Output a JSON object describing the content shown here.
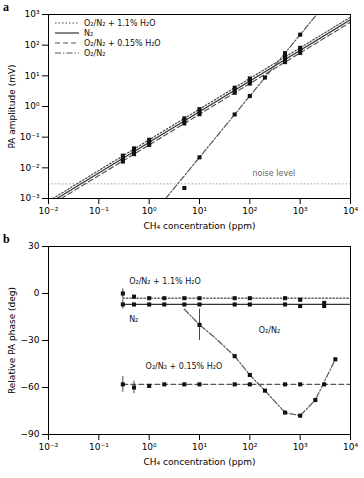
{
  "chart_data": [
    {
      "type": "line",
      "title": "a",
      "xlabel": "CH₄ concentration (ppm)",
      "ylabel": "PA amplitude (mV)",
      "log": true,
      "grid": false,
      "legend": "upper left",
      "xlim": [
        0.01,
        10000
      ],
      "ylim": [
        0.001,
        1000
      ],
      "xticks": [
        {
          "value": 0.01,
          "label": "10⁻²"
        },
        {
          "value": 0.1,
          "label": "10⁻¹"
        },
        {
          "value": 1,
          "label": "10⁰"
        },
        {
          "value": 10,
          "label": "10¹"
        },
        {
          "value": 100,
          "label": "10²"
        },
        {
          "value": 1000,
          "label": "10³"
        },
        {
          "value": 10000,
          "label": "10⁴"
        }
      ],
      "yticks": [
        {
          "value": 0.001,
          "label": "10⁻³"
        },
        {
          "value": 0.01,
          "label": "10⁻²"
        },
        {
          "value": 0.1,
          "label": "10⁻¹"
        },
        {
          "value": 1,
          "label": "10⁰"
        },
        {
          "value": 10,
          "label": "10¹"
        },
        {
          "value": 100,
          "label": "10²"
        },
        {
          "value": 1000,
          "label": "10³"
        }
      ],
      "noise_level": 0.003,
      "annotations": [
        {
          "text": "noise level",
          "x": 300,
          "y": 0.0054
        }
      ],
      "series": [
        {
          "name": "O₂/N₂ + 1.1% H₂O",
          "type": "line",
          "color": "#444444",
          "line_style": "dotted",
          "x": [
            0.01219512195,
            10000
          ],
          "values": [
            0.001,
            820
          ]
        },
        {
          "name": "N₂",
          "type": "line",
          "color": "#333333",
          "line_style": "solid",
          "x": [
            0.01470588235,
            10000
          ],
          "values": [
            0.001,
            680
          ]
        },
        {
          "name": "O₂/N₂ + 0.15% H₂O",
          "type": "line",
          "color": "#555555",
          "line_style": "dashed",
          "x": [
            0.01785714286,
            10000
          ],
          "values": [
            0.001,
            560
          ]
        },
        {
          "name": "O₂/N₂",
          "type": "line",
          "color": "#555555",
          "line_style": "dashdot",
          "x": [
            2.132007164,
            2132.007164
          ],
          "values": [
            0.001,
            1000
          ]
        },
        {
          "type": "scatter",
          "color": "#111111",
          "marker": "square",
          "x": [
            0.3,
            0.5,
            1.0,
            5.0,
            10.0,
            50.0,
            100.0,
            500.0,
            1000.0
          ],
          "values": [
            0.025,
            0.043,
            0.082,
            0.41,
            0.82,
            4.1,
            8.2,
            41.0,
            82.0
          ]
        },
        {
          "type": "scatter",
          "color": "#111111",
          "marker": "square",
          "x": [
            0.3,
            0.5,
            1.0,
            5.0,
            10.0,
            50.0,
            100.0,
            500.0,
            1000.0
          ],
          "values": [
            0.02,
            0.035,
            0.068,
            0.34,
            0.68,
            3.4,
            6.8,
            34.0,
            68.0
          ]
        },
        {
          "type": "scatter",
          "color": "#111111",
          "marker": "square",
          "x": [
            0.3,
            0.5,
            1.0,
            5.0,
            10.0,
            50.0,
            100.0,
            500.0,
            1000.0
          ],
          "values": [
            0.016,
            0.028,
            0.056,
            0.28,
            0.56,
            2.8,
            5.6,
            28.0,
            56.0
          ]
        },
        {
          "type": "scatter",
          "color": "#111111",
          "marker": "square",
          "x": [
            5.0,
            10.0,
            50.0,
            100.0,
            200.0,
            500.0,
            1000.0
          ],
          "values": [
            0.0022,
            0.022,
            0.55,
            2.2,
            8.8,
            55.0,
            220.0
          ]
        }
      ]
    },
    {
      "type": "line",
      "title": "b",
      "xlabel": "CH₄ concentration (ppm)",
      "ylabel": "Relative PA phase (deg)",
      "log": "x",
      "grid": false,
      "xlim": [
        0.01,
        10000
      ],
      "ylim": [
        -90,
        30
      ],
      "xticks": [
        {
          "value": 0.01,
          "label": "10⁻²"
        },
        {
          "value": 0.1,
          "label": "10⁻¹"
        },
        {
          "value": 1,
          "label": "10⁰"
        },
        {
          "value": 10,
          "label": "10¹"
        },
        {
          "value": 100,
          "label": "10²"
        },
        {
          "value": 1000,
          "label": "10³"
        },
        {
          "value": 10000,
          "label": "10⁴"
        }
      ],
      "yticks": [
        30,
        0,
        -30,
        -60,
        -90
      ],
      "annotations": [
        {
          "text": "O₂/N₂ + 1.1% H₂O",
          "x": 0.4,
          "y": 6
        },
        {
          "text": "N₂",
          "x": 0.4,
          "y": -18
        },
        {
          "text": "O₂/N₂ + 0.15% H₂O",
          "x": 0.85,
          "y": -48
        },
        {
          "text": "O₂/N₂",
          "x": 150.0,
          "y": -25
        }
      ],
      "series": [
        {
          "type": "line",
          "color": "#444444",
          "line_style": "dotted",
          "x": [
            0.3,
            10000
          ],
          "values": [
            -3.0,
            -3.0
          ]
        },
        {
          "type": "line",
          "color": "#333333",
          "line_style": "solid",
          "x": [
            0.3,
            10000
          ],
          "values": [
            -7.0,
            -7.0
          ]
        },
        {
          "type": "line",
          "color": "#555555",
          "line_style": "dashed",
          "x": [
            0.3,
            10000
          ],
          "values": [
            -58.0,
            -58.0
          ]
        },
        {
          "type": "line",
          "color": "#555555",
          "line_style": "dashdot",
          "x": [
            5.0,
            10.0,
            20.0,
            50.0,
            100.0,
            200.0,
            500.0,
            1000.0,
            2000.0,
            5000.0
          ],
          "values": [
            -10.0,
            -20.0,
            -28.0,
            -40.0,
            -52.0,
            -62.0,
            -76.0,
            -78.0,
            -68.0,
            -42.0
          ]
        },
        {
          "type": "scatter",
          "color": "#111111",
          "marker": "square",
          "x": [
            0.3,
            0.5,
            1.0,
            2.0,
            5.0,
            10.0,
            50.0,
            100.0,
            500.0,
            1000.0,
            3000.0
          ],
          "values": [
            0.0,
            -2.0,
            -3.0,
            -3.0,
            -3.0,
            -3.0,
            -3.0,
            -3.0,
            -3.0,
            -4.0,
            -6.0
          ],
          "yerr": [
            3.0,
            0.0,
            0.0,
            0.0,
            0.0,
            0.0,
            0.0,
            0.0,
            0.0,
            0.0,
            0.0
          ]
        },
        {
          "type": "scatter",
          "color": "#111111",
          "marker": "square",
          "x": [
            0.3,
            0.5,
            1.0,
            2.0,
            5.0,
            10.0,
            50.0,
            100.0,
            500.0,
            1000.0,
            3000.0
          ],
          "values": [
            -7.0,
            -7.0,
            -7.0,
            -7.0,
            -7.0,
            -7.0,
            -7.0,
            -7.0,
            -7.0,
            -8.0,
            -8.0
          ],
          "yerr": [
            3.0,
            0.0,
            0.0,
            0.0,
            0.0,
            0.0,
            0.0,
            0.0,
            0.0,
            0.0,
            0.0
          ]
        },
        {
          "type": "scatter",
          "color": "#111111",
          "marker": "square",
          "x": [
            0.3,
            0.5,
            1.0,
            2.0,
            5.0,
            10.0,
            50.0,
            100.0,
            500.0,
            1000.0,
            3000.0
          ],
          "values": [
            -58.0,
            -60.0,
            -59.0,
            -58.0,
            -58.0,
            -58.0,
            -58.0,
            -58.0,
            -58.0,
            -58.0,
            -58.0
          ],
          "yerr": [
            5.0,
            4.0,
            0.0,
            0.0,
            0.0,
            0.0,
            0.0,
            0.0,
            0.0,
            0.0,
            0.0
          ]
        },
        {
          "type": "scatter",
          "color": "#111111",
          "marker": "square",
          "x": [
            10.0,
            50.0,
            100.0,
            200.0,
            500.0,
            1000.0,
            2000.0,
            5000.0
          ],
          "values": [
            -20.0,
            -40.0,
            -52.0,
            -62.0,
            -76.0,
            -78.0,
            -68.0,
            -42.0
          ],
          "yerr": [
            10.0,
            0.0,
            0.0,
            0.0,
            0.0,
            0.0,
            0.0,
            0.0
          ]
        }
      ]
    }
  ]
}
